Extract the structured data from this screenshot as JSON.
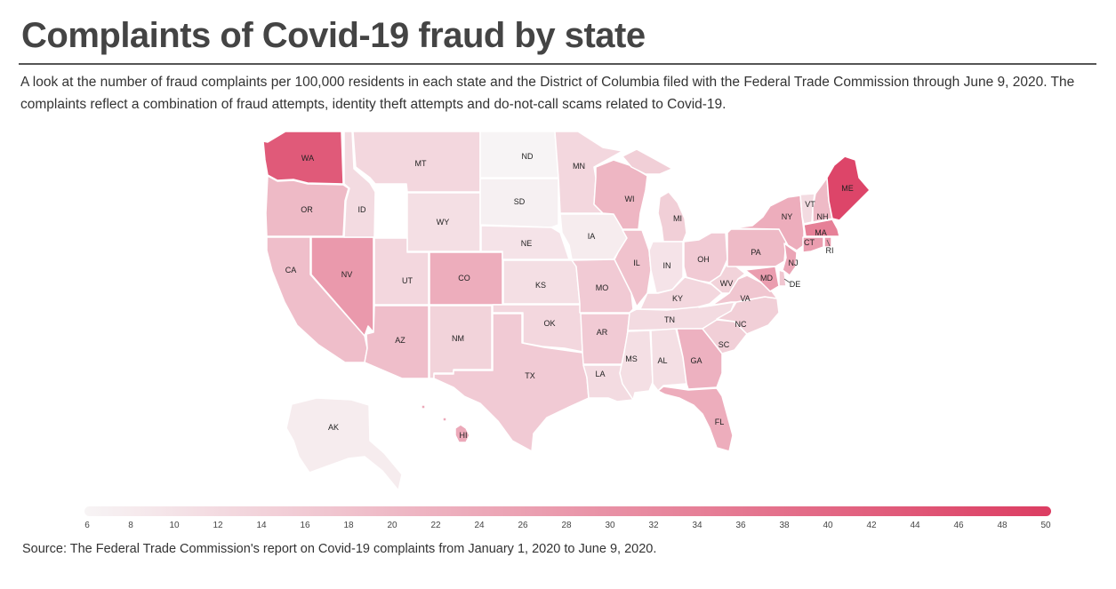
{
  "title": "Complaints of Covid-19 fraud by state",
  "subtitle": "A look at the number of fraud complaints per 100,000 residents in each state and the District of Columbia filed with the Federal Trade Commission through June 9, 2020. The complaints reflect a combination of fraud attempts, identity theft attempts and do-not-call scams related to Covid-19.",
  "source": "Source: The Federal Trade Commission's report on Covid-19 complaints from January 1, 2020 to June 9, 2020.",
  "scale": {
    "min": 6,
    "max": 50,
    "color_low": "#f7f4f5",
    "color_high": "#dc3d62"
  },
  "legend_ticks": [
    6,
    8,
    10,
    12,
    14,
    16,
    18,
    20,
    22,
    24,
    26,
    28,
    30,
    32,
    34,
    36,
    38,
    40,
    42,
    44,
    46,
    48,
    50
  ],
  "states": [
    {
      "abbr": "WA",
      "value": 43
    },
    {
      "abbr": "OR",
      "value": 20
    },
    {
      "abbr": "CA",
      "value": 19
    },
    {
      "abbr": "NV",
      "value": 28
    },
    {
      "abbr": "ID",
      "value": 12
    },
    {
      "abbr": "MT",
      "value": 13
    },
    {
      "abbr": "WY",
      "value": 11
    },
    {
      "abbr": "UT",
      "value": 13
    },
    {
      "abbr": "CO",
      "value": 23
    },
    {
      "abbr": "AZ",
      "value": 19
    },
    {
      "abbr": "NM",
      "value": 14
    },
    {
      "abbr": "ND",
      "value": 6
    },
    {
      "abbr": "SD",
      "value": 7
    },
    {
      "abbr": "NE",
      "value": 10
    },
    {
      "abbr": "KS",
      "value": 11
    },
    {
      "abbr": "OK",
      "value": 13
    },
    {
      "abbr": "TX",
      "value": 16
    },
    {
      "abbr": "MN",
      "value": 13
    },
    {
      "abbr": "IA",
      "value": 8
    },
    {
      "abbr": "MO",
      "value": 16
    },
    {
      "abbr": "AR",
      "value": 16
    },
    {
      "abbr": "LA",
      "value": 12
    },
    {
      "abbr": "WI",
      "value": 21
    },
    {
      "abbr": "IL",
      "value": 18
    },
    {
      "abbr": "MI",
      "value": 15
    },
    {
      "abbr": "IN",
      "value": 10
    },
    {
      "abbr": "OH",
      "value": 16
    },
    {
      "abbr": "KY",
      "value": 13
    },
    {
      "abbr": "TN",
      "value": 12
    },
    {
      "abbr": "MS",
      "value": 11
    },
    {
      "abbr": "AL",
      "value": 11
    },
    {
      "abbr": "GA",
      "value": 22
    },
    {
      "abbr": "FL",
      "value": 23
    },
    {
      "abbr": "SC",
      "value": 15
    },
    {
      "abbr": "NC",
      "value": 15
    },
    {
      "abbr": "VA",
      "value": 17
    },
    {
      "abbr": "WV",
      "value": 14
    },
    {
      "abbr": "PA",
      "value": 20
    },
    {
      "abbr": "NY",
      "value": 23
    },
    {
      "abbr": "VT",
      "value": 12
    },
    {
      "abbr": "NH",
      "value": 20
    },
    {
      "abbr": "ME",
      "value": 48
    },
    {
      "abbr": "MA",
      "value": 34
    },
    {
      "abbr": "RI",
      "value": 28
    },
    {
      "abbr": "CT",
      "value": 27
    },
    {
      "abbr": "NJ",
      "value": 25
    },
    {
      "abbr": "DE",
      "value": 17
    },
    {
      "abbr": "MD",
      "value": 27
    },
    {
      "abbr": "AK",
      "value": 8
    },
    {
      "abbr": "HI",
      "value": 24
    }
  ]
}
